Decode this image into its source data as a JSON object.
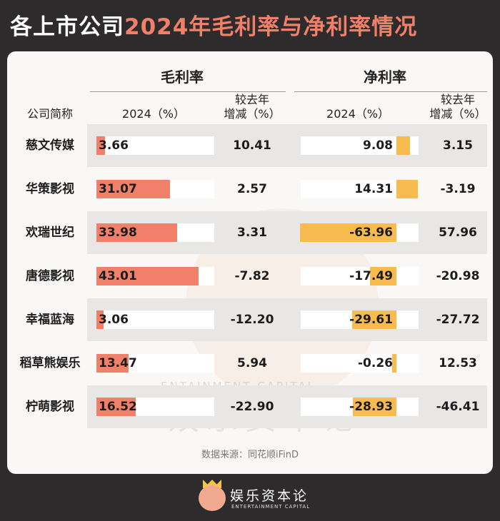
{
  "title": {
    "part1": "各上市公司",
    "part2": "2024年毛利率与净利率情况"
  },
  "headers": {
    "company": "公司简称",
    "gross_group": "毛利率",
    "net_group": "净利率",
    "gross_2024": "2024（%）",
    "gross_change": "较去年\n增减（%）",
    "net_2024": "2024（%）",
    "net_change": "较去年\n增减（%）"
  },
  "chart_data": {
    "type": "table",
    "title": "各上市公司2024年毛利率与净利率情况",
    "columns": [
      "公司简称",
      "毛利率 2024（%）",
      "毛利率 较去年增减（%）",
      "净利率 2024（%）",
      "净利率 较去年增减（%）"
    ],
    "rows": [
      {
        "name": "慈文传媒",
        "gross": "3.66",
        "gross_change": "10.41",
        "net": "9.08",
        "net_change": "3.15"
      },
      {
        "name": "华策影视",
        "gross": "31.07",
        "gross_change": "2.57",
        "net": "14.31",
        "net_change": "-3.19"
      },
      {
        "name": "欢瑞世纪",
        "gross": "33.98",
        "gross_change": "3.31",
        "net": "-63.96",
        "net_change": "57.96"
      },
      {
        "name": "唐德影视",
        "gross": "43.01",
        "gross_change": "-7.82",
        "net": "-17.49",
        "net_change": "-20.98"
      },
      {
        "name": "幸福蓝海",
        "gross": "3.06",
        "gross_change": "-12.20",
        "net": "-29.61",
        "net_change": "-27.72"
      },
      {
        "name": "稻草熊娱乐",
        "gross": "13.47",
        "gross_change": "5.94",
        "net": "-0.26",
        "net_change": "12.53"
      },
      {
        "name": "柠萌影视",
        "gross": "16.52",
        "gross_change": "-22.90",
        "net": "-28.93",
        "net_change": "-46.41"
      }
    ],
    "colors": {
      "gross_bar": "#f0806a",
      "net_bar": "#f8bb4f"
    }
  },
  "source": "数据来源：同花顺iFinD",
  "watermark": {
    "en": "ENTAINMENT CAPITAL",
    "cn": "娱乐资本论"
  },
  "logo": {
    "name": "娱乐资本论",
    "sub": "ENTERTAINMENT CAPITAL"
  }
}
